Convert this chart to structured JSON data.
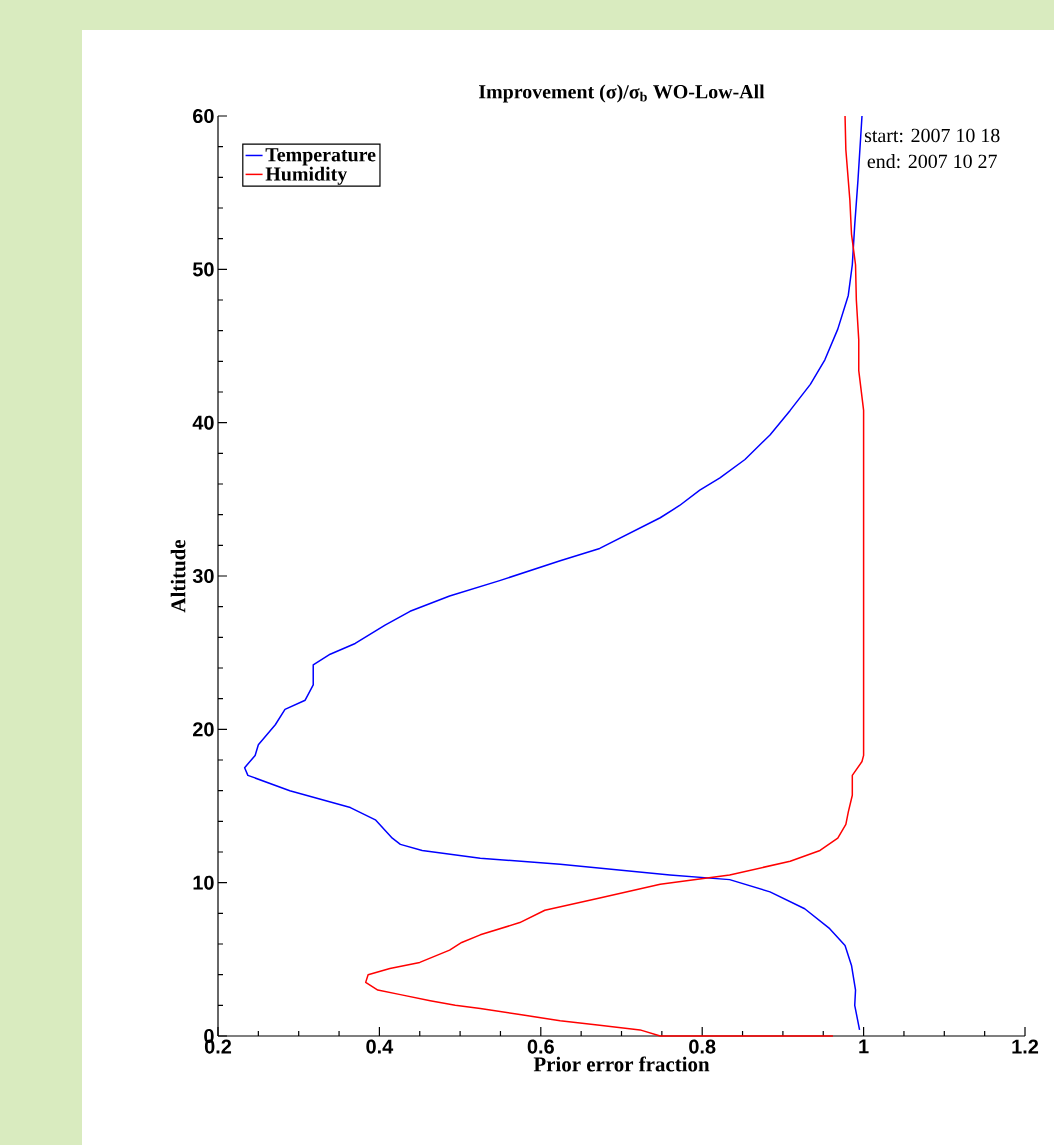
{
  "chart_data": {
    "type": "line",
    "title": "Improvement (σ)/σ$_{b}$ WO-Low-All",
    "xlabel": "Prior error fraction",
    "ylabel": "Altitude",
    "annotations": [
      "start: 2007 10 18",
      "end: 2007 10 27"
    ],
    "xlim": [
      0.2,
      1.2
    ],
    "ylim": [
      0,
      60
    ],
    "xticks": [
      0.2,
      0.4,
      0.6,
      0.8,
      1,
      1.2
    ],
    "yticks": [
      0,
      10,
      20,
      30,
      40,
      50,
      60
    ],
    "legend": "top left",
    "series": [
      {
        "name": "Temperature",
        "color": "#0000ff",
        "x": [
          0.995,
          0.989,
          0.99,
          0.985,
          0.977,
          0.958,
          0.927,
          0.884,
          0.834,
          0.76,
          0.624,
          0.525,
          0.453,
          0.426,
          0.416,
          0.395,
          0.364,
          0.289,
          0.237,
          0.233,
          0.246,
          0.25,
          0.271,
          0.283,
          0.308,
          0.318,
          0.318,
          0.339,
          0.37,
          0.407,
          0.438,
          0.487,
          0.549,
          0.624,
          0.673,
          0.748,
          0.772,
          0.797,
          0.822,
          0.853,
          0.884,
          0.909,
          0.934,
          0.952,
          0.968,
          0.981,
          0.986,
          0.989,
          0.993,
          0.998
        ],
        "values": [
          0.4,
          2.0,
          3.0,
          4.6,
          5.9,
          7.0,
          8.3,
          9.4,
          10.2,
          10.5,
          11.2,
          11.6,
          12.1,
          12.5,
          12.9,
          14.1,
          14.9,
          16.0,
          17.0,
          17.5,
          18.3,
          19.0,
          20.3,
          21.3,
          21.9,
          22.9,
          24.2,
          24.9,
          25.6,
          26.8,
          27.7,
          28.7,
          29.7,
          31.0,
          31.8,
          33.8,
          34.6,
          35.6,
          36.4,
          37.6,
          39.2,
          40.8,
          42.5,
          44.1,
          46.1,
          48.3,
          50.3,
          52.9,
          55.8,
          60
        ]
      },
      {
        "name": "Humidity",
        "color": "#ff0000",
        "x": [
          0.962,
          0.748,
          0.723,
          0.673,
          0.624,
          0.574,
          0.525,
          0.494,
          0.463,
          0.426,
          0.398,
          0.383,
          0.386,
          0.413,
          0.45,
          0.487,
          0.502,
          0.525,
          0.574,
          0.605,
          0.673,
          0.748,
          0.834,
          0.909,
          0.946,
          0.968,
          0.978,
          0.981,
          0.986,
          0.986,
          0.998,
          1.0,
          1.0,
          0.994,
          0.994,
          0.991,
          0.99,
          0.985,
          0.983,
          0.978,
          0.977
        ],
        "values": [
          0,
          0,
          0.4,
          0.7,
          1.0,
          1.4,
          1.8,
          2.0,
          2.3,
          2.7,
          3.0,
          3.5,
          4.0,
          4.4,
          4.8,
          5.6,
          6.1,
          6.6,
          7.4,
          8.2,
          9.0,
          9.9,
          10.5,
          11.4,
          12.1,
          12.9,
          13.8,
          14.6,
          15.7,
          17.0,
          17.9,
          18.3,
          40.8,
          43.4,
          45.4,
          48.0,
          50.3,
          52.3,
          54.5,
          57.8,
          60
        ]
      }
    ]
  }
}
